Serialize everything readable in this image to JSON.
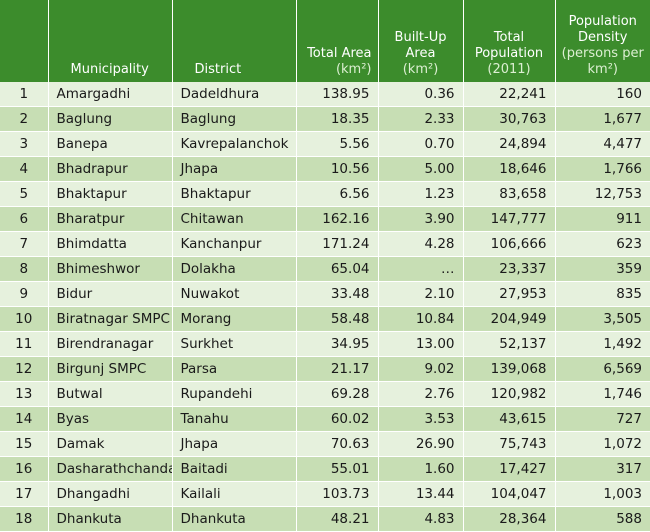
{
  "header": {
    "num": "",
    "municipality": "Municipality",
    "district": "District",
    "total_area": "Total Area",
    "total_area_unit": "(km²)",
    "built_up": "Built-Up Area",
    "built_up_unit": "(km²)",
    "population": "Total Population",
    "population_unit": "(2011)",
    "density": "Population Density",
    "density_unit": "(persons per km²)"
  },
  "rows": [
    {
      "n": "1",
      "municipality": "Amargadhi",
      "district": "Dadeldhura",
      "area": "138.95",
      "builtup": "0.36",
      "population": "22,241",
      "density": "160"
    },
    {
      "n": "2",
      "municipality": "Baglung",
      "district": "Baglung",
      "area": "18.35",
      "builtup": "2.33",
      "population": "30,763",
      "density": "1,677"
    },
    {
      "n": "3",
      "municipality": "Banepa",
      "district": "Kavrepalanchok",
      "area": "5.56",
      "builtup": "0.70",
      "population": "24,894",
      "density": "4,477"
    },
    {
      "n": "4",
      "municipality": "Bhadrapur",
      "district": "Jhapa",
      "area": "10.56",
      "builtup": "5.00",
      "population": "18,646",
      "density": "1,766"
    },
    {
      "n": "5",
      "municipality": "Bhaktapur",
      "district": "Bhaktapur",
      "area": "6.56",
      "builtup": "1.23",
      "population": "83,658",
      "density": "12,753"
    },
    {
      "n": "6",
      "municipality": "Bharatpur",
      "district": "Chitawan",
      "area": "162.16",
      "builtup": "3.90",
      "population": "147,777",
      "density": "911"
    },
    {
      "n": "7",
      "municipality": "Bhimdatta",
      "district": "Kanchanpur",
      "area": "171.24",
      "builtup": "4.28",
      "population": "106,666",
      "density": "623"
    },
    {
      "n": "8",
      "municipality": "Bhimeshwor",
      "district": "Dolakha",
      "area": "65.04",
      "builtup": "…",
      "population": "23,337",
      "density": "359"
    },
    {
      "n": "9",
      "municipality": "Bidur",
      "district": "Nuwakot",
      "area": "33.48",
      "builtup": "2.10",
      "population": "27,953",
      "density": "835"
    },
    {
      "n": "10",
      "municipality": "Biratnagar SMPC",
      "district": "Morang",
      "area": "58.48",
      "builtup": "10.84",
      "population": "204,949",
      "density": "3,505"
    },
    {
      "n": "11",
      "municipality": "Birendranagar",
      "district": "Surkhet",
      "area": "34.95",
      "builtup": "13.00",
      "population": "52,137",
      "density": "1,492"
    },
    {
      "n": "12",
      "municipality": "Birgunj SMPC",
      "district": "Parsa",
      "area": "21.17",
      "builtup": "9.02",
      "population": "139,068",
      "density": "6,569"
    },
    {
      "n": "13",
      "municipality": "Butwal",
      "district": "Rupandehi",
      "area": "69.28",
      "builtup": "2.76",
      "population": "120,982",
      "density": "1,746"
    },
    {
      "n": "14",
      "municipality": "Byas",
      "district": "Tanahu",
      "area": "60.02",
      "builtup": "3.53",
      "population": "43,615",
      "density": "727"
    },
    {
      "n": "15",
      "municipality": "Damak",
      "district": "Jhapa",
      "area": "70.63",
      "builtup": "26.90",
      "population": "75,743",
      "density": "1,072"
    },
    {
      "n": "16",
      "municipality": "Dasharathchanda",
      "district": "Baitadi",
      "area": "55.01",
      "builtup": "1.60",
      "population": "17,427",
      "density": "317"
    },
    {
      "n": "17",
      "municipality": "Dhangadhi",
      "district": "Kailali",
      "area": "103.73",
      "builtup": "13.44",
      "population": "104,047",
      "density": "1,003"
    },
    {
      "n": "18",
      "municipality": "Dhankuta",
      "district": "Dhankuta",
      "area": "48.21",
      "builtup": "4.83",
      "population": "28,364",
      "density": "588"
    }
  ]
}
